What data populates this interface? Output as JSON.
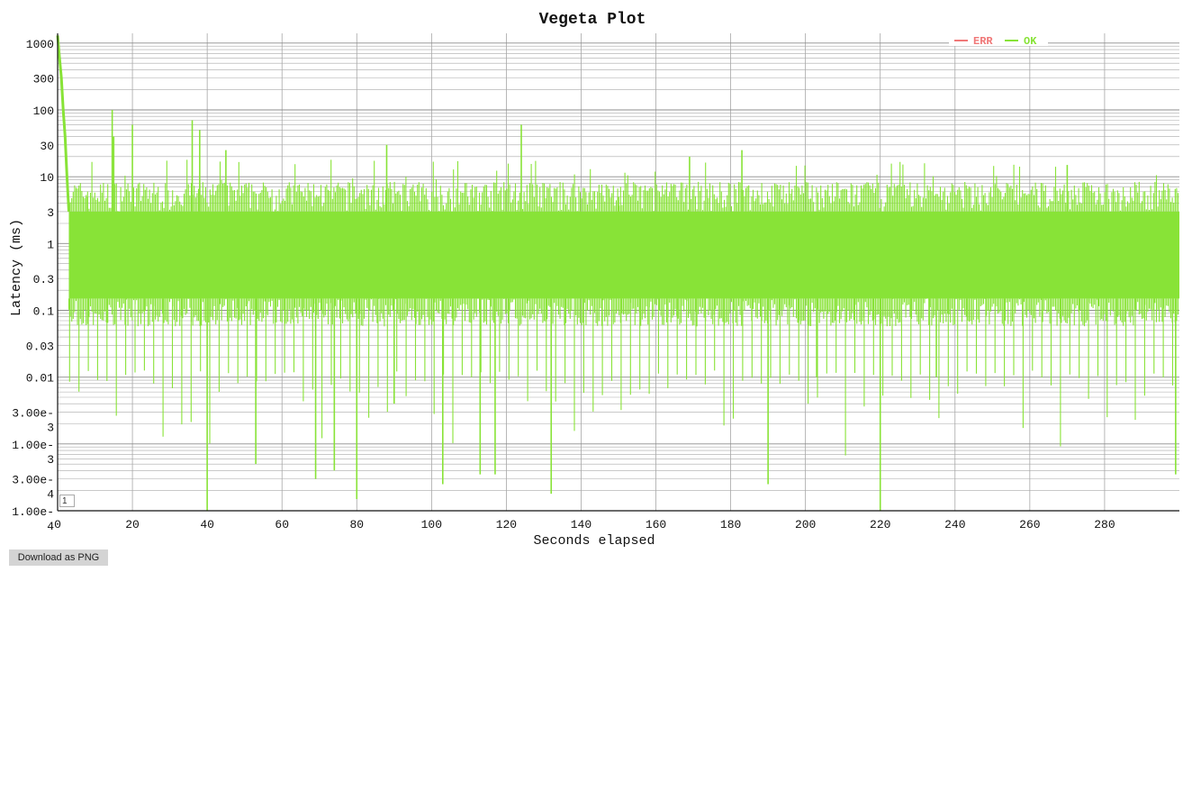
{
  "chart_data": {
    "type": "line",
    "title": "Vegeta Plot",
    "xlabel": "Seconds elapsed",
    "ylabel": "Latency (ms)",
    "xlim": [
      0,
      300
    ],
    "ylim": [
      0.0001,
      1400
    ],
    "yscale": "log",
    "grid": true,
    "legend_position": "top-right",
    "x_ticks": [
      0,
      20,
      40,
      60,
      80,
      100,
      120,
      140,
      160,
      180,
      200,
      220,
      240,
      260,
      280
    ],
    "x_tick_labels": [
      "0",
      "20",
      "40",
      "60",
      "80",
      "100",
      "120",
      "140",
      "160",
      "180",
      "200",
      "220",
      "240",
      "260",
      "280"
    ],
    "y_ticks": [
      1000,
      300,
      100,
      30,
      10,
      3,
      1,
      0.3,
      0.1,
      0.03,
      0.01,
      0.003,
      0.001,
      0.0003,
      0.0001
    ],
    "y_tick_labels": [
      [
        "1000"
      ],
      [
        "300"
      ],
      [
        "100"
      ],
      [
        "30"
      ],
      [
        "10"
      ],
      [
        "3"
      ],
      [
        "1"
      ],
      [
        "0.3"
      ],
      [
        "0.1"
      ],
      [
        "0.03"
      ],
      [
        "0.01"
      ],
      [
        "3.00e-",
        "3"
      ],
      [
        "1.00e-",
        "3"
      ],
      [
        "3.00e-",
        "4"
      ],
      [
        "1.00e-",
        "4"
      ]
    ],
    "series": [
      {
        "name": "ERR",
        "color": "#f07878",
        "values": []
      },
      {
        "name": "OK",
        "color": "#88e337",
        "band_low_ms": 0.15,
        "band_high_ms": 3,
        "x": [
          0,
          0.5,
          1,
          1.5,
          2,
          2.5,
          3,
          8,
          14.6,
          15,
          20,
          36,
          38,
          40,
          45,
          53,
          69,
          74,
          80,
          88,
          90,
          103,
          113,
          117,
          124,
          132,
          150,
          169,
          183,
          190,
          203,
          220,
          235,
          270,
          299
        ],
        "y": [
          1300,
          600,
          300,
          100,
          40,
          10,
          3,
          5,
          100,
          40,
          60,
          70,
          50,
          0.0001,
          25,
          0.0005,
          0.0003,
          0.0004,
          0.00015,
          30,
          0.004,
          0.00025,
          0.00035,
          0.00035,
          60,
          0.00018,
          5,
          20,
          25,
          0.00025,
          0.01,
          0.0001,
          0.01,
          15,
          0.00035
        ]
      }
    ]
  },
  "roller_value": "1",
  "download_label": "Download as PNG"
}
